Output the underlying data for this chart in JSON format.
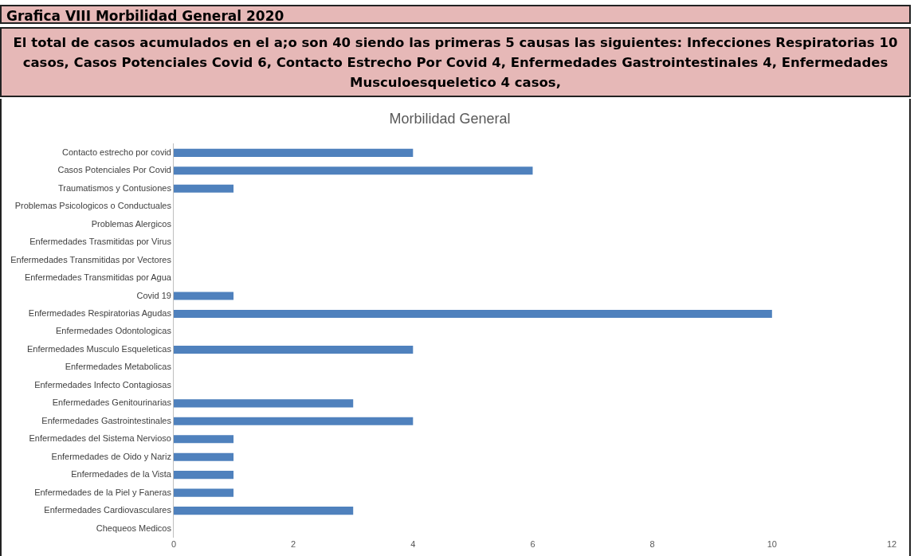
{
  "chart_data": {
    "type": "bar",
    "orientation": "horizontal",
    "title": "Grafica VIII Morbilidad General  2020",
    "subtitle": "El total de casos acumulados en el a;o son 40 siendo las primeras 5 causas las siguientes: Infecciones Respiratorias 10 casos, Casos Potenciales Covid 6, Contacto Estrecho Por Covid 4, Enfermedades Gastrointestinales 4, Enfermedades Musculoesqueletico 4 casos,",
    "annotations": [
      "Morbilidad General"
    ],
    "categories": [
      "Contacto estrecho por covid",
      "Casos Potenciales Por Covid",
      "Traumatismos y Contusiones",
      "Problemas Psicologicos o Conductuales",
      "Problemas Alergicos",
      "Enfermedades Trasmitidas por Virus",
      "Enfermedades Transmitidas por Vectores",
      "Enfermedades Transmitidas por Agua",
      "Covid 19",
      "Enfermedades Respiratorias Agudas",
      "Enfermedades Odontologicas",
      "Enfermedades Musculo Esqueleticas",
      "Enfermedades Metabolicas",
      "Enfermedades Infecto Contagiosas",
      "Enfermedades Genitourinarias",
      "Enfermedades Gastrointestinales",
      "Enfermedades del Sistema Nervioso",
      "Enfermedades de Oido y Nariz",
      "Enfermedades de la Vista",
      "Enfermedades de la Piel y Faneras",
      "Enfermedades Cardiovasculares",
      "Chequeos Medicos"
    ],
    "values": [
      4,
      6,
      1,
      0,
      0,
      0,
      0,
      0,
      1,
      10,
      0,
      4,
      0,
      0,
      3,
      4,
      1,
      1,
      1,
      1,
      3,
      0
    ],
    "color": "#4f81bd",
    "xlim": [
      0,
      12
    ],
    "xticks": [
      0,
      2,
      4,
      6,
      8,
      10,
      12
    ],
    "grid": false,
    "legend": false
  }
}
